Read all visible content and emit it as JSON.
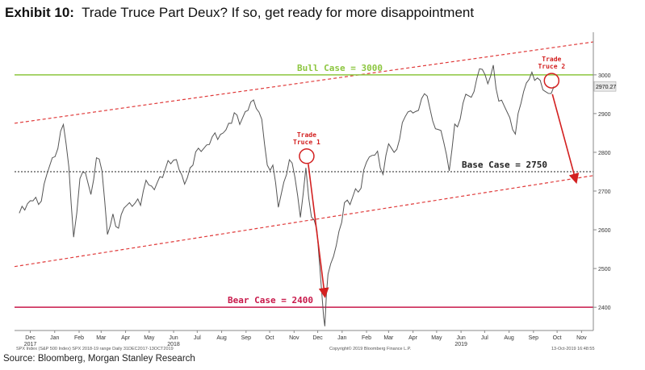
{
  "header": {
    "exhibit_label": "Exhibit 10:",
    "title": "Trade Truce Part Deux? If so, get ready for more disappointment"
  },
  "footer": {
    "source": "Source: Bloomberg, Morgan Stanley Research",
    "legend_text": "SPX Index (S&P 500 Index) SPX 2018-19 range Daily 31DEC2017-13OCT2019",
    "copyright": "Copyright© 2019 Bloomberg Finance L.P.",
    "timestamp": "13-Oct-2019 16:48:55"
  },
  "chart_data": {
    "type": "line",
    "series": [
      {
        "values": [
          [
            "2017-12-01",
            2643
          ],
          [
            "2017-12-08",
            2651
          ],
          [
            "2017-12-15",
            2675
          ],
          [
            "2017-12-22",
            2684
          ],
          [
            "2017-12-29",
            2674
          ],
          [
            "2018-01-05",
            2743
          ],
          [
            "2018-01-12",
            2786
          ],
          [
            "2018-01-19",
            2810
          ],
          [
            "2018-01-26",
            2872
          ],
          [
            "2018-02-02",
            2762
          ],
          [
            "2018-02-08",
            2581
          ],
          [
            "2018-02-16",
            2732
          ],
          [
            "2018-02-23",
            2747
          ],
          [
            "2018-03-02",
            2691
          ],
          [
            "2018-03-09",
            2786
          ],
          [
            "2018-03-16",
            2752
          ],
          [
            "2018-03-23",
            2588
          ],
          [
            "2018-03-30",
            2641
          ],
          [
            "2018-04-06",
            2604
          ],
          [
            "2018-04-13",
            2656
          ],
          [
            "2018-04-20",
            2670
          ],
          [
            "2018-04-27",
            2669
          ],
          [
            "2018-05-04",
            2663
          ],
          [
            "2018-05-11",
            2728
          ],
          [
            "2018-05-18",
            2713
          ],
          [
            "2018-05-25",
            2721
          ],
          [
            "2018-06-01",
            2735
          ],
          [
            "2018-06-08",
            2779
          ],
          [
            "2018-06-15",
            2780
          ],
          [
            "2018-06-22",
            2755
          ],
          [
            "2018-06-29",
            2718
          ],
          [
            "2018-07-06",
            2760
          ],
          [
            "2018-07-13",
            2801
          ],
          [
            "2018-07-20",
            2802
          ],
          [
            "2018-07-27",
            2819
          ],
          [
            "2018-08-03",
            2840
          ],
          [
            "2018-08-10",
            2833
          ],
          [
            "2018-08-17",
            2850
          ],
          [
            "2018-08-24",
            2875
          ],
          [
            "2018-08-31",
            2902
          ],
          [
            "2018-09-07",
            2872
          ],
          [
            "2018-09-14",
            2905
          ],
          [
            "2018-09-21",
            2930
          ],
          [
            "2018-09-28",
            2913
          ],
          [
            "2018-10-05",
            2885
          ],
          [
            "2018-10-12",
            2767
          ],
          [
            "2018-10-19",
            2767
          ],
          [
            "2018-10-26",
            2658
          ],
          [
            "2018-11-02",
            2723
          ],
          [
            "2018-11-09",
            2781
          ],
          [
            "2018-11-16",
            2736
          ],
          [
            "2018-11-23",
            2632
          ],
          [
            "2018-11-30",
            2760
          ],
          [
            "2018-12-07",
            2633
          ],
          [
            "2018-12-14",
            2599
          ],
          [
            "2018-12-21",
            2416
          ],
          [
            "2018-12-24",
            2351
          ],
          [
            "2018-12-28",
            2485
          ],
          [
            "2019-01-04",
            2531
          ],
          [
            "2019-01-11",
            2596
          ],
          [
            "2019-01-18",
            2670
          ],
          [
            "2019-01-25",
            2665
          ],
          [
            "2019-02-01",
            2706
          ],
          [
            "2019-02-08",
            2707
          ],
          [
            "2019-02-15",
            2775
          ],
          [
            "2019-02-22",
            2792
          ],
          [
            "2019-03-01",
            2803
          ],
          [
            "2019-03-08",
            2743
          ],
          [
            "2019-03-15",
            2822
          ],
          [
            "2019-03-22",
            2800
          ],
          [
            "2019-03-29",
            2834
          ],
          [
            "2019-04-05",
            2892
          ],
          [
            "2019-04-12",
            2907
          ],
          [
            "2019-04-18",
            2905
          ],
          [
            "2019-04-26",
            2939
          ],
          [
            "2019-05-03",
            2945
          ],
          [
            "2019-05-10",
            2881
          ],
          [
            "2019-05-17",
            2859
          ],
          [
            "2019-05-24",
            2826
          ],
          [
            "2019-05-31",
            2752
          ],
          [
            "2019-06-07",
            2873
          ],
          [
            "2019-06-14",
            2886
          ],
          [
            "2019-06-21",
            2950
          ],
          [
            "2019-06-28",
            2942
          ],
          [
            "2019-07-05",
            2990
          ],
          [
            "2019-07-12",
            3014
          ],
          [
            "2019-07-19",
            2977
          ],
          [
            "2019-07-26",
            3025
          ],
          [
            "2019-08-02",
            2932
          ],
          [
            "2019-08-09",
            2919
          ],
          [
            "2019-08-16",
            2889
          ],
          [
            "2019-08-23",
            2847
          ],
          [
            "2019-08-30",
            2926
          ],
          [
            "2019-09-06",
            2979
          ],
          [
            "2019-09-13",
            3007
          ],
          [
            "2019-09-20",
            2992
          ],
          [
            "2019-09-27",
            2961
          ],
          [
            "2019-10-04",
            2952
          ],
          [
            "2019-10-11",
            2970
          ]
        ]
      }
    ],
    "x_ticks": [
      {
        "date": "2017-12-15",
        "label": "Dec"
      },
      {
        "date": "2018-01-15",
        "label": "Jan"
      },
      {
        "date": "2018-02-15",
        "label": "Feb"
      },
      {
        "date": "2018-03-15",
        "label": "Mar"
      },
      {
        "date": "2018-04-15",
        "label": "Apr"
      },
      {
        "date": "2018-05-15",
        "label": "May"
      },
      {
        "date": "2018-06-15",
        "label": "Jun"
      },
      {
        "date": "2018-07-15",
        "label": "Jul"
      },
      {
        "date": "2018-08-15",
        "label": "Aug"
      },
      {
        "date": "2018-09-15",
        "label": "Sep"
      },
      {
        "date": "2018-10-15",
        "label": "Oct"
      },
      {
        "date": "2018-11-15",
        "label": "Nov"
      },
      {
        "date": "2018-12-15",
        "label": "Dec"
      },
      {
        "date": "2019-01-15",
        "label": "Jan"
      },
      {
        "date": "2019-02-15",
        "label": "Feb"
      },
      {
        "date": "2019-03-15",
        "label": "Mar"
      },
      {
        "date": "2019-04-15",
        "label": "Apr"
      },
      {
        "date": "2019-05-15",
        "label": "May"
      },
      {
        "date": "2019-06-15",
        "label": "Jun"
      },
      {
        "date": "2019-07-15",
        "label": "Jul"
      },
      {
        "date": "2019-08-15",
        "label": "Aug"
      },
      {
        "date": "2019-09-15",
        "label": "Sep"
      },
      {
        "date": "2019-10-15",
        "label": "Oct"
      },
      {
        "date": "2019-11-15",
        "label": "Nov"
      }
    ],
    "year_labels": [
      {
        "date": "2017-12-15",
        "label": "2017"
      },
      {
        "date": "2018-06-15",
        "label": "2018"
      },
      {
        "date": "2019-06-15",
        "label": "2019"
      }
    ],
    "y_ticks": [
      2400,
      2500,
      2600,
      2700,
      2800,
      2900,
      3000
    ],
    "ylim": [
      2340,
      3110
    ],
    "xlim": [
      "2017-11-25",
      "2019-11-30"
    ],
    "last_price": {
      "value": 2970.27,
      "label": "2970.27"
    },
    "horizontal_lines": [
      {
        "label": "Bull Case = 3000",
        "value": 3000,
        "color": "#8cc63f"
      },
      {
        "label": "Base Case = 2750",
        "value": 2750,
        "color": "#222222"
      },
      {
        "label": "Bear Case = 2400",
        "value": 2400,
        "color": "#c8184a"
      }
    ],
    "channel": {
      "color": "#e03a3a",
      "upper": [
        [
          "2017-11-25",
          2875
        ],
        [
          "2019-11-30",
          3085
        ]
      ],
      "lower": [
        [
          "2017-11-25",
          2505
        ],
        [
          "2019-11-30",
          2740
        ]
      ]
    },
    "annotations": [
      {
        "label": "Trade Truce 1",
        "date": "2018-12-01",
        "value": 2790
      },
      {
        "label": "Trade Truce 2",
        "date": "2019-10-08",
        "value": 2985
      }
    ],
    "arrows": [
      {
        "from": [
          "2018-12-03",
          2770
        ],
        "to": [
          "2018-12-24",
          2430
        ]
      },
      {
        "from": [
          "2019-10-09",
          2950
        ],
        "to": [
          "2019-11-08",
          2725
        ]
      }
    ],
    "colors": {
      "price_line": "#555555",
      "arrow": "#d32020",
      "annotation": "#d32020"
    }
  }
}
